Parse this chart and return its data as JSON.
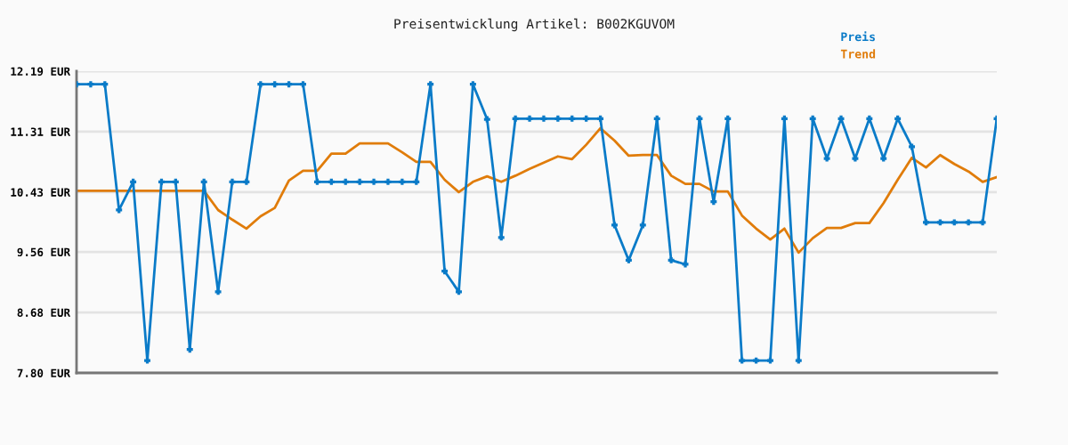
{
  "chart_data": {
    "type": "line",
    "title": "Preisentwicklung Artikel: B002KGUVOM",
    "categories": [
      null,
      null,
      null,
      null,
      null,
      null,
      null,
      null,
      null,
      null,
      null,
      null,
      null,
      null,
      null,
      null,
      null,
      null,
      null,
      null,
      null,
      null,
      null,
      null,
      null,
      null,
      null,
      null,
      null,
      null,
      null,
      null,
      null,
      null,
      null,
      null,
      null,
      null,
      null,
      null,
      null,
      null,
      null,
      null,
      null,
      null,
      null,
      null,
      null,
      null,
      null,
      null,
      null,
      null,
      null,
      null,
      null,
      null,
      null,
      null,
      null,
      null,
      null,
      null,
      null,
      null
    ],
    "series": [
      {
        "name": "Preis",
        "color": "#0a7bc8",
        "marker": "cross",
        "values": [
          12.0,
          12.0,
          12.0,
          10.17,
          10.58,
          7.98,
          10.58,
          10.58,
          8.14,
          10.58,
          8.98,
          10.58,
          10.58,
          12.0,
          12.0,
          12.0,
          12.0,
          10.58,
          10.58,
          10.58,
          10.58,
          10.58,
          10.58,
          10.58,
          10.58,
          12.0,
          9.28,
          8.98,
          12.0,
          11.49,
          9.77,
          11.5,
          11.5,
          11.5,
          11.5,
          11.5,
          11.5,
          11.5,
          9.95,
          9.44,
          9.95,
          11.5,
          9.44,
          9.38,
          11.5,
          10.29,
          11.5,
          7.98,
          7.98,
          7.98,
          11.5,
          7.98,
          11.5,
          10.92,
          11.5,
          10.92,
          11.5,
          10.92,
          11.5,
          11.09,
          9.99,
          9.99,
          9.99,
          9.99,
          9.99,
          11.5
        ]
      },
      {
        "name": "Trend",
        "color": "#e07c0a",
        "marker": "none",
        "values": [
          10.45,
          10.45,
          10.45,
          10.45,
          10.45,
          10.45,
          10.45,
          10.45,
          10.45,
          10.45,
          10.17,
          10.03,
          9.9,
          10.08,
          10.2,
          10.6,
          10.74,
          10.74,
          10.99,
          10.99,
          11.14,
          11.14,
          11.14,
          11.01,
          10.87,
          10.87,
          10.61,
          10.43,
          10.58,
          10.66,
          10.58,
          10.67,
          10.77,
          10.86,
          10.95,
          10.91,
          11.12,
          11.36,
          11.18,
          10.96,
          10.97,
          10.97,
          10.67,
          10.55,
          10.55,
          10.44,
          10.44,
          10.09,
          9.9,
          9.74,
          9.9,
          9.55,
          9.76,
          9.91,
          9.91,
          9.98,
          9.98,
          10.27,
          10.61,
          10.93,
          10.79,
          10.97,
          10.84,
          10.73,
          10.58,
          10.65
        ]
      }
    ],
    "ylim": [
      7.8,
      12.19
    ],
    "yticks": [
      {
        "value": 7.8,
        "label": "7.80 EUR"
      },
      {
        "value": 8.68,
        "label": "8.68 EUR"
      },
      {
        "value": 9.56,
        "label": "9.56 EUR"
      },
      {
        "value": 10.43,
        "label": "10.43 EUR"
      },
      {
        "value": 11.31,
        "label": "11.31 EUR"
      },
      {
        "value": 12.19,
        "label": "12.19 EUR"
      }
    ],
    "grid": "y",
    "legend": "top right",
    "line_style": "solid"
  }
}
